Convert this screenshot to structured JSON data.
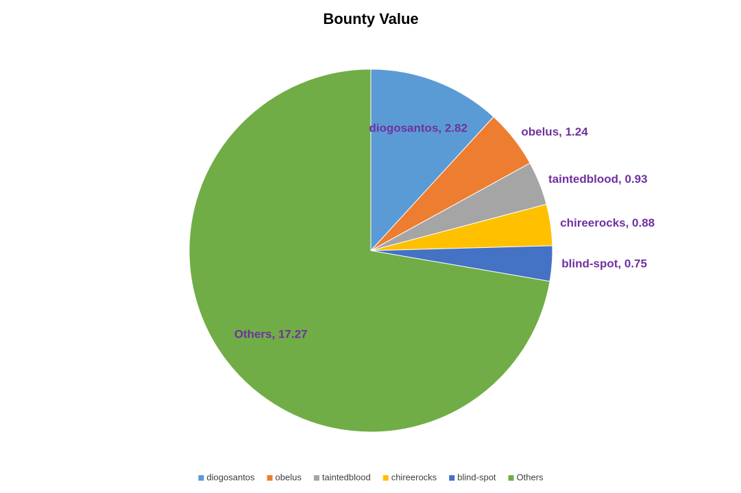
{
  "chart_data": {
    "type": "pie",
    "title": "Bounty Value",
    "categories": [
      "diogosantos",
      "obelus",
      "taintedblood",
      "chireerocks",
      "blind-spot",
      "Others"
    ],
    "values": [
      2.82,
      1.24,
      0.93,
      0.88,
      0.75,
      17.27
    ],
    "value_labels": [
      "diogosantos, 2.82",
      "obelus, 1.24",
      "taintedblood, 0.93",
      "chireerocks, 0.88",
      "blind-spot, 0.75",
      "Others, 17.27"
    ],
    "colors": [
      "#5b9bd5",
      "#ed7d31",
      "#a5a5a5",
      "#ffc000",
      "#4472c4",
      "#70ad47"
    ],
    "label_color": "#7030a0",
    "legend": "bottom"
  }
}
